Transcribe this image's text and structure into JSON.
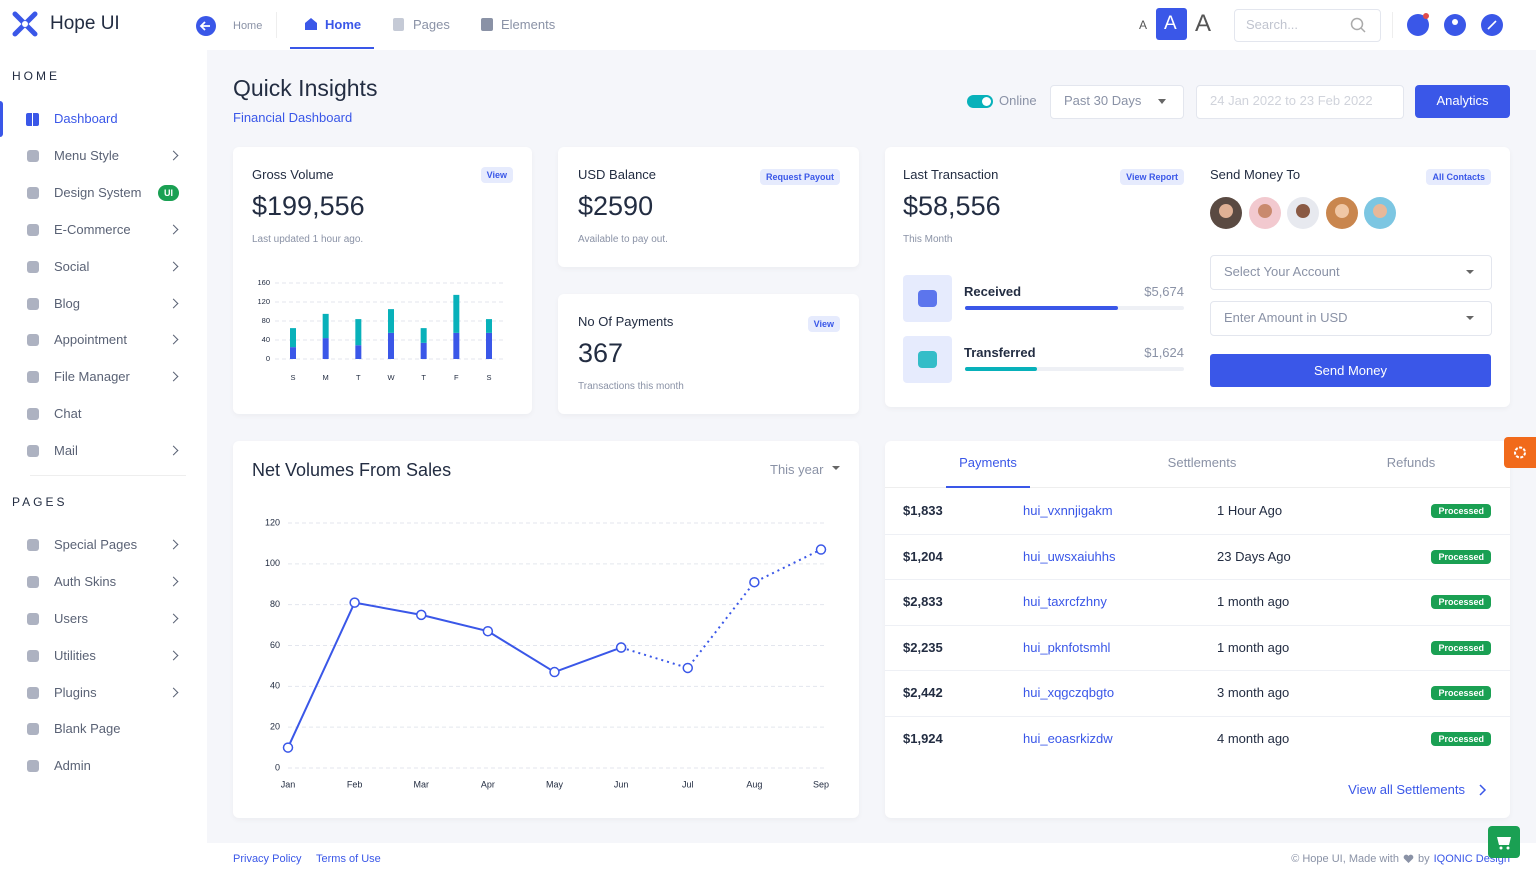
{
  "brand": "Hope UI",
  "topbar": {
    "breadcrumb": "Home",
    "tabs": [
      "Home",
      "Pages",
      "Elements"
    ],
    "font_sizes": [
      "A",
      "A",
      "A"
    ],
    "search_placeholder": "Search..."
  },
  "sidebar": {
    "sections": [
      {
        "title": "HOME",
        "items": [
          {
            "label": "Dashboard",
            "active": true
          },
          {
            "label": "Menu Style",
            "submenu": true
          },
          {
            "label": "Design System",
            "badge": "UI"
          },
          {
            "label": "E-Commerce",
            "submenu": true
          },
          {
            "label": "Social",
            "submenu": true
          },
          {
            "label": "Blog",
            "submenu": true
          },
          {
            "label": "Appointment",
            "submenu": true
          },
          {
            "label": "File Manager",
            "submenu": true
          },
          {
            "label": "Chat"
          },
          {
            "label": "Mail",
            "submenu": true
          }
        ]
      },
      {
        "title": "PAGES",
        "items": [
          {
            "label": "Special Pages",
            "submenu": true
          },
          {
            "label": "Auth Skins",
            "submenu": true
          },
          {
            "label": "Users",
            "submenu": true
          },
          {
            "label": "Utilities",
            "submenu": true
          },
          {
            "label": "Plugins",
            "submenu": true
          },
          {
            "label": "Blank Page"
          },
          {
            "label": "Admin"
          }
        ]
      }
    ]
  },
  "header": {
    "title": "Quick Insights",
    "subtitle": "Financial Dashboard",
    "status": "Online",
    "period": "Past 30 Days",
    "date_range": "24 Jan 2022 to 23 Feb 2022",
    "button": "Analytics"
  },
  "gross_volume": {
    "label": "Gross Volume",
    "link": "View",
    "value": "$199,556",
    "note": "Last updated 1 hour ago.",
    "chart": {
      "type": "bar",
      "stacked": true,
      "categories": [
        "S",
        "M",
        "T",
        "W",
        "T",
        "F",
        "S"
      ],
      "series": [
        {
          "color": "#3a57e8",
          "values": [
            25,
            44,
            29,
            55,
            34,
            55,
            55
          ]
        },
        {
          "color": "#08b1ba",
          "values": [
            40,
            51,
            55,
            50,
            31,
            80,
            29
          ]
        }
      ],
      "ylim": [
        0,
        160
      ],
      "yticks": [
        0,
        40,
        80,
        120,
        160
      ],
      "grid": true
    }
  },
  "usd_balance": {
    "label": "USD Balance",
    "link": "Request Payout",
    "value": "$2590",
    "note": "Available to pay out."
  },
  "payments": {
    "label": "No Of Payments",
    "link": "View",
    "value": "367",
    "note": "Transactions this month"
  },
  "last_transaction": {
    "label": "Last Transaction",
    "link": "View Report",
    "value": "$58,556",
    "note": "This Month",
    "progress_lim": [
      0,
      100
    ],
    "items": [
      {
        "label": "Received",
        "amount": "$5,674",
        "progress": 70,
        "color": "#3a57e8"
      },
      {
        "label": "Transferred",
        "amount": "$1,624",
        "progress": 33,
        "color": "#08b1ba"
      }
    ]
  },
  "send_money": {
    "title": "Send Money To",
    "link": "All Contacts",
    "account_placeholder": "Select Your Account",
    "amount_placeholder": "Enter Amount in USD",
    "button": "Send Money"
  },
  "net_volumes": {
    "type": "line",
    "title": "Net Volumes From Sales",
    "period": "This year",
    "categories": [
      "Jan",
      "Feb",
      "Mar",
      "Apr",
      "May",
      "Jun",
      "Jul",
      "Aug",
      "Sep"
    ],
    "series": [
      {
        "color": "#3a57e8",
        "dashed": false,
        "values": [
          10,
          81,
          75,
          67,
          47,
          59,
          null,
          null,
          null
        ]
      },
      {
        "color": "#3a57e8",
        "dashed": true,
        "values": [
          null,
          null,
          null,
          null,
          null,
          59,
          49,
          91,
          107
        ]
      }
    ],
    "ylim": [
      0,
      120
    ],
    "yticks": [
      0,
      20,
      40,
      60,
      80,
      100,
      120
    ],
    "grid": true
  },
  "transactions": {
    "tabs": [
      "Payments",
      "Settlements",
      "Refunds"
    ],
    "rows": [
      [
        "$1,833",
        "hui_vxnnjigakm",
        "1 Hour Ago",
        "Processed"
      ],
      [
        "$1,204",
        "hui_uwsxaiuhhs",
        "23 Days Ago",
        "Processed"
      ],
      [
        "$2,833",
        "hui_taxrcfzhny",
        "1 month ago",
        "Processed"
      ],
      [
        "$2,235",
        "hui_pknfotsmhl",
        "1 month ago",
        "Processed"
      ],
      [
        "$2,442",
        "hui_xqgczqbgto",
        "3 month ago",
        "Processed"
      ],
      [
        "$1,924",
        "hui_eoasrkizdw",
        "4 month ago",
        "Processed"
      ]
    ],
    "link": "View all Settlements"
  },
  "footer": {
    "links": [
      "Privacy Policy",
      "Terms of Use"
    ],
    "credit": "© Hope UI, Made with",
    "by": "by",
    "company": "IQONIC Design"
  }
}
